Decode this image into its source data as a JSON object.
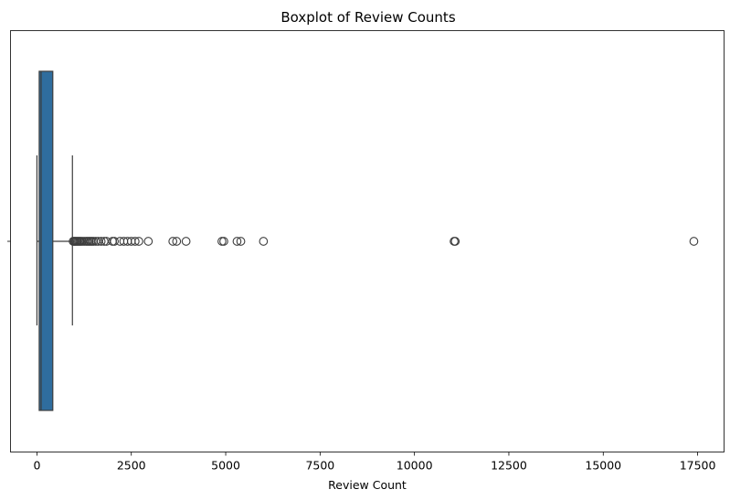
{
  "chart_data": {
    "type": "boxplot",
    "title": "Boxplot of Review Counts",
    "xlabel": "Review Count",
    "ylabel": "",
    "xlim": [
      -700,
      18200
    ],
    "xticks": [
      0,
      2500,
      5000,
      7500,
      10000,
      12500,
      15000,
      17500
    ],
    "xtick_labels": [
      "0",
      "2500",
      "5000",
      "7500",
      "10000",
      "12500",
      "15000",
      "17500"
    ],
    "orientation": "horizontal",
    "box": {
      "whisker_low": 0,
      "q1": 60,
      "median": 110,
      "q3": 420,
      "whisker_high": 940
    },
    "outliers": [
      960,
      990,
      1010,
      1040,
      1070,
      1100,
      1130,
      1160,
      1200,
      1250,
      1300,
      1340,
      1380,
      1420,
      1460,
      1500,
      1560,
      1620,
      1700,
      1780,
      1840,
      2000,
      2050,
      2200,
      2300,
      2400,
      2500,
      2600,
      2700,
      2950,
      3600,
      3700,
      3950,
      4900,
      4950,
      5300,
      5400,
      6000,
      11050,
      11080,
      17400
    ],
    "box_color": "#2f6d9e",
    "line_color": "#3d3d3d",
    "grid": false,
    "legend": false
  }
}
